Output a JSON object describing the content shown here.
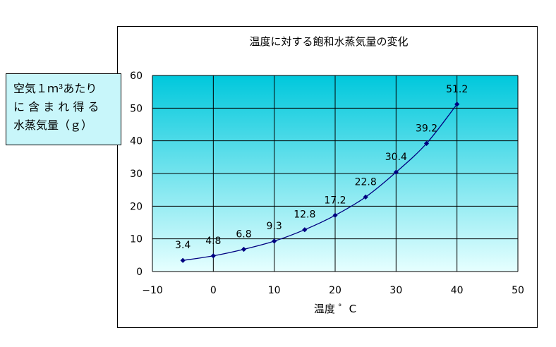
{
  "chart_data": {
    "type": "line",
    "title": "温度に対する飽和水蒸気量の変化",
    "xlabel": "温度 ゜C",
    "ylabel_lines": [
      "空気１ｍ³あたり",
      "に 含 ま れ 得 る",
      "水蒸気量（ｇ）"
    ],
    "xlim": [
      -10,
      50
    ],
    "ylim": [
      0,
      60
    ],
    "xticks": [
      -10,
      0,
      10,
      20,
      30,
      40,
      50
    ],
    "yticks": [
      0,
      10,
      20,
      30,
      40,
      50,
      60
    ],
    "grid": true,
    "series": [
      {
        "x": [
          -5,
          0,
          5,
          10,
          15,
          20,
          25,
          30,
          35,
          40
        ],
        "y": [
          3.4,
          4.8,
          6.8,
          9.3,
          12.8,
          17.2,
          22.8,
          30.4,
          39.2,
          51.2
        ],
        "labels": [
          "3.4",
          "4.8",
          "6.8",
          "9.3",
          "12.8",
          "17.2",
          "22.8",
          "30.4",
          "39.2",
          "51.2"
        ]
      }
    ],
    "colors": {
      "line": "#000080",
      "marker": "#000080",
      "plot_top": "#00c8dc",
      "plot_bottom": "#e6ffff",
      "grid": "#000000"
    }
  }
}
